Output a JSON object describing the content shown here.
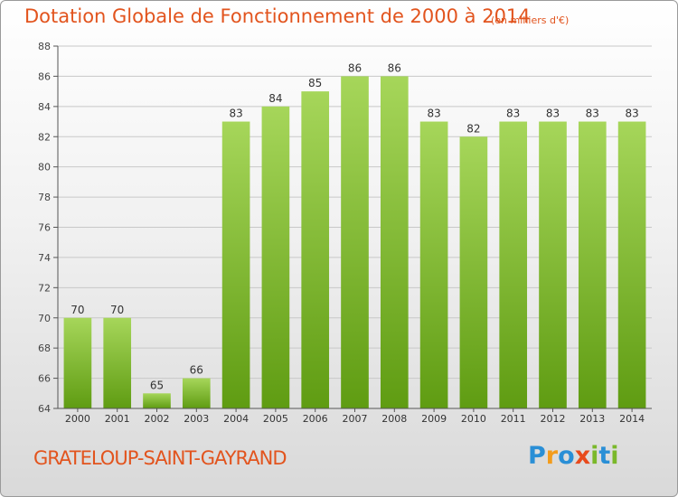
{
  "title": "Dotation Globale de Fonctionnement de 2000 à 2014",
  "unit": "(en milliers d'€)",
  "commune": "GRATELOUP-SAINT-GAYRAND",
  "brand": {
    "letters": [
      "P",
      "r",
      "o",
      "x",
      "i",
      "t",
      "i"
    ],
    "colors": [
      "#2a8fd6",
      "#f39c1c",
      "#2a8fd6",
      "#e84a1c",
      "#7ab82a",
      "#2a8fd6",
      "#7ab82a"
    ]
  },
  "colors": {
    "bar_top": "#a6d65a",
    "bar_bottom": "#5f9c12",
    "text": "#e2541e",
    "axis": "#555555",
    "grid": "#c8c8c8"
  },
  "chart_data": {
    "type": "bar",
    "title": "Dotation Globale de Fonctionnement de 2000 à 2014",
    "xlabel": "",
    "ylabel": "",
    "categories": [
      "2000",
      "2001",
      "2002",
      "2003",
      "2004",
      "2005",
      "2006",
      "2007",
      "2008",
      "2009",
      "2010",
      "2011",
      "2012",
      "2013",
      "2014"
    ],
    "values": [
      70,
      70,
      65,
      66,
      83,
      84,
      85,
      86,
      86,
      83,
      82,
      83,
      83,
      83,
      83
    ],
    "ylim": [
      64,
      88
    ],
    "yticks": [
      64,
      66,
      68,
      70,
      72,
      74,
      76,
      78,
      80,
      82,
      84,
      86,
      88
    ],
    "grid": true,
    "legend": "none"
  }
}
